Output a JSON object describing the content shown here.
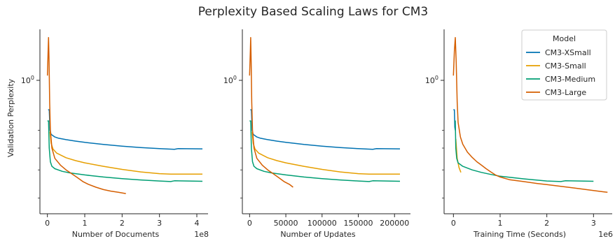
{
  "chart_data": {
    "type": "line",
    "title": "Perplexity Based Scaling Laws for CM3",
    "y_scale": "log",
    "ylabel": "Validation Perplexity",
    "y_tick_label": "10^0",
    "legend": {
      "title": "Model",
      "placement": "top-right",
      "entries": [
        {
          "name": "CM3-XSmall",
          "color": "#0072b2"
        },
        {
          "name": "CM3-Small",
          "color": "#e69f00"
        },
        {
          "name": "CM3-Medium",
          "color": "#009e73"
        },
        {
          "name": "CM3-Large",
          "color": "#d55e00"
        }
      ]
    },
    "panels": [
      {
        "xlabel": "Number of Documents",
        "x_offset_text": "1e8",
        "xlim": [
          -0.2,
          4.3
        ],
        "xticks": [
          0,
          1,
          2,
          3,
          4
        ],
        "xtick_labels": [
          "0",
          "1",
          "2",
          "3",
          "4"
        ],
        "series": [
          {
            "name": "CM3-XSmall",
            "points": [
              [
                0.02,
                0.74
              ],
              [
                0.05,
                0.74
              ],
              [
                0.07,
                0.6
              ],
              [
                0.1,
                0.575
              ],
              [
                0.2,
                0.56
              ],
              [
                0.3,
                0.553
              ],
              [
                0.5,
                0.545
              ],
              [
                0.75,
                0.537
              ],
              [
                1.0,
                0.53
              ],
              [
                1.5,
                0.519
              ],
              [
                2.0,
                0.51
              ],
              [
                2.5,
                0.503
              ],
              [
                3.0,
                0.497
              ],
              [
                3.4,
                0.494
              ],
              [
                3.5,
                0.497
              ],
              [
                4.15,
                0.496
              ]
            ]
          },
          {
            "name": "CM3-Small",
            "points": [
              [
                0.07,
                0.59
              ],
              [
                0.1,
                0.525
              ],
              [
                0.15,
                0.495
              ],
              [
                0.25,
                0.475
              ],
              [
                0.5,
                0.453
              ],
              [
                0.75,
                0.44
              ],
              [
                1.0,
                0.43
              ],
              [
                1.5,
                0.415
              ],
              [
                2.0,
                0.402
              ],
              [
                2.5,
                0.392
              ],
              [
                3.0,
                0.385
              ],
              [
                3.3,
                0.383
              ],
              [
                4.15,
                0.383
              ]
            ]
          },
          {
            "name": "CM3-Medium",
            "points": [
              [
                0.0,
                0.66
              ],
              [
                0.03,
                0.66
              ],
              [
                0.05,
                0.5
              ],
              [
                0.08,
                0.435
              ],
              [
                0.12,
                0.415
              ],
              [
                0.2,
                0.405
              ],
              [
                0.4,
                0.394
              ],
              [
                0.6,
                0.388
              ],
              [
                1.0,
                0.38
              ],
              [
                1.5,
                0.372
              ],
              [
                2.0,
                0.366
              ],
              [
                2.5,
                0.361
              ],
              [
                3.0,
                0.357
              ],
              [
                3.3,
                0.355
              ],
              [
                3.4,
                0.358
              ],
              [
                4.15,
                0.356
              ]
            ]
          },
          {
            "name": "CM3-Large",
            "points": [
              [
                0.0,
                1.05
              ],
              [
                0.02,
                1.35
              ],
              [
                0.03,
                1.55
              ],
              [
                0.045,
                1.2
              ],
              [
                0.06,
                0.8
              ],
              [
                0.08,
                0.6
              ],
              [
                0.12,
                0.5
              ],
              [
                0.2,
                0.45
              ],
              [
                0.35,
                0.42
              ],
              [
                0.5,
                0.4
              ],
              [
                0.65,
                0.385
              ],
              [
                0.8,
                0.37
              ],
              [
                0.95,
                0.355
              ],
              [
                1.1,
                0.345
              ],
              [
                1.3,
                0.335
              ],
              [
                1.5,
                0.327
              ],
              [
                1.7,
                0.322
              ],
              [
                1.9,
                0.318
              ],
              [
                2.1,
                0.314
              ]
            ]
          }
        ]
      },
      {
        "xlabel": "Number of Updates",
        "x_offset_text": "",
        "xlim": [
          -10000,
          222000
        ],
        "xticks": [
          0,
          50000,
          100000,
          150000,
          200000
        ],
        "xtick_labels": [
          "0",
          "50000",
          "100000",
          "150000",
          "200000"
        ],
        "series": [
          {
            "name": "CM3-XSmall",
            "points": [
              [
                1000,
                0.74
              ],
              [
                2500,
                0.74
              ],
              [
                3500,
                0.6
              ],
              [
                5000,
                0.575
              ],
              [
                10000,
                0.56
              ],
              [
                15000,
                0.553
              ],
              [
                25000,
                0.545
              ],
              [
                37500,
                0.537
              ],
              [
                50000,
                0.53
              ],
              [
                75000,
                0.519
              ],
              [
                100000,
                0.51
              ],
              [
                125000,
                0.503
              ],
              [
                150000,
                0.497
              ],
              [
                170000,
                0.494
              ],
              [
                175000,
                0.497
              ],
              [
                207500,
                0.496
              ]
            ]
          },
          {
            "name": "CM3-Small",
            "points": [
              [
                3500,
                0.59
              ],
              [
                5000,
                0.525
              ],
              [
                7500,
                0.495
              ],
              [
                12500,
                0.475
              ],
              [
                25000,
                0.453
              ],
              [
                37500,
                0.44
              ],
              [
                50000,
                0.43
              ],
              [
                75000,
                0.415
              ],
              [
                100000,
                0.402
              ],
              [
                125000,
                0.392
              ],
              [
                150000,
                0.385
              ],
              [
                165000,
                0.383
              ],
              [
                207500,
                0.383
              ]
            ]
          },
          {
            "name": "CM3-Medium",
            "points": [
              [
                0,
                0.66
              ],
              [
                1500,
                0.66
              ],
              [
                2500,
                0.5
              ],
              [
                4000,
                0.435
              ],
              [
                6000,
                0.415
              ],
              [
                10000,
                0.405
              ],
              [
                20000,
                0.394
              ],
              [
                30000,
                0.388
              ],
              [
                50000,
                0.38
              ],
              [
                75000,
                0.372
              ],
              [
                100000,
                0.366
              ],
              [
                125000,
                0.361
              ],
              [
                150000,
                0.357
              ],
              [
                165000,
                0.355
              ],
              [
                170000,
                0.358
              ],
              [
                207500,
                0.356
              ]
            ]
          },
          {
            "name": "CM3-Large",
            "points": [
              [
                0,
                1.05
              ],
              [
                1000,
                1.35
              ],
              [
                1500,
                1.55
              ],
              [
                2200,
                1.2
              ],
              [
                3000,
                0.8
              ],
              [
                4000,
                0.6
              ],
              [
                6000,
                0.5
              ],
              [
                10000,
                0.45
              ],
              [
                17500,
                0.42
              ],
              [
                25000,
                0.4
              ],
              [
                32500,
                0.385
              ],
              [
                40000,
                0.37
              ],
              [
                47500,
                0.355
              ],
              [
                55000,
                0.345
              ],
              [
                60000,
                0.335
              ]
            ]
          }
        ]
      },
      {
        "xlabel": "Training Time (Seconds)",
        "x_offset_text": "1e6",
        "xlim": [
          -0.2,
          3.4
        ],
        "xticks": [
          0,
          1,
          2,
          3
        ],
        "xtick_labels": [
          "0",
          "1",
          "2",
          "3"
        ],
        "series": [
          {
            "name": "CM3-XSmall",
            "points": [
              [
                0.0,
                0.74
              ],
              [
                0.02,
                0.74
              ],
              [
                0.03,
                0.62
              ],
              [
                0.04,
                0.6
              ]
            ]
          },
          {
            "name": "CM3-Small",
            "points": [
              [
                0.05,
                0.55
              ],
              [
                0.08,
                0.45
              ],
              [
                0.12,
                0.41
              ],
              [
                0.16,
                0.39
              ]
            ]
          },
          {
            "name": "CM3-Medium",
            "points": [
              [
                0.02,
                0.66
              ],
              [
                0.04,
                0.66
              ],
              [
                0.05,
                0.5
              ],
              [
                0.07,
                0.45
              ],
              [
                0.1,
                0.43
              ],
              [
                0.2,
                0.415
              ],
              [
                0.4,
                0.4
              ],
              [
                0.6,
                0.39
              ],
              [
                0.8,
                0.382
              ],
              [
                1.0,
                0.375
              ],
              [
                1.5,
                0.365
              ],
              [
                2.0,
                0.357
              ],
              [
                2.3,
                0.355
              ],
              [
                2.4,
                0.358
              ],
              [
                3.0,
                0.356
              ]
            ]
          },
          {
            "name": "CM3-Large",
            "points": [
              [
                0.0,
                1.05
              ],
              [
                0.02,
                1.35
              ],
              [
                0.04,
                1.55
              ],
              [
                0.06,
                1.2
              ],
              [
                0.08,
                0.8
              ],
              [
                0.1,
                0.65
              ],
              [
                0.15,
                0.56
              ],
              [
                0.2,
                0.52
              ],
              [
                0.3,
                0.48
              ],
              [
                0.4,
                0.455
              ],
              [
                0.5,
                0.435
              ],
              [
                0.6,
                0.42
              ],
              [
                0.7,
                0.405
              ],
              [
                0.8,
                0.392
              ],
              [
                0.9,
                0.38
              ],
              [
                1.0,
                0.372
              ],
              [
                1.2,
                0.362
              ],
              [
                1.5,
                0.355
              ],
              [
                1.8,
                0.348
              ],
              [
                2.0,
                0.344
              ],
              [
                2.3,
                0.338
              ],
              [
                2.6,
                0.332
              ],
              [
                2.8,
                0.328
              ],
              [
                3.0,
                0.324
              ],
              [
                3.2,
                0.32
              ],
              [
                3.3,
                0.318
              ]
            ]
          }
        ]
      }
    ]
  }
}
